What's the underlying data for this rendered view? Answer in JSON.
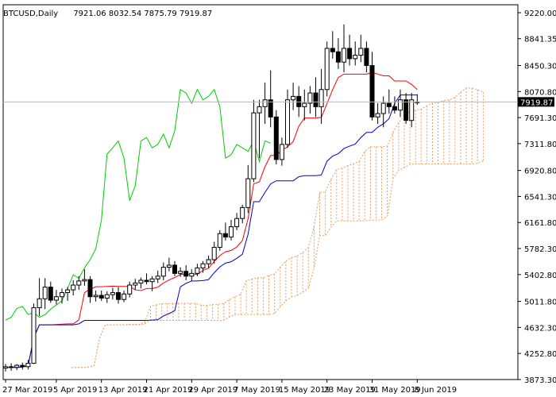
{
  "header": {
    "symbol": "BTCUSD,Daily",
    "ohlc": "7921.06 8032.54 7875.79 7919.87"
  },
  "current_price_label": "7919.87",
  "chart_data": {
    "type": "candlestick",
    "ylim": [
      3873.0,
      9220.0
    ],
    "yticks": [
      "9220.00",
      "8841.35",
      "8450.30",
      "8070.80",
      "7691.30",
      "7311.80",
      "6920.80",
      "6541.30",
      "6161.80",
      "5782.30",
      "5402.80",
      "5011.80",
      "4632.30",
      "4252.80",
      "3873.30"
    ],
    "xticks": [
      "27 Mar 2019",
      "5 Apr 2019",
      "13 Apr 2019",
      "21 Apr 2019",
      "29 Apr 2019",
      "7 May 2019",
      "15 May 2019",
      "23 May 2019",
      "31 May 2019",
      "8 Jun 2019"
    ],
    "xtick_index": [
      0,
      9,
      17,
      25,
      33,
      41,
      49,
      57,
      65,
      73
    ],
    "candles": [
      [
        4040,
        4100,
        3990,
        4060
      ],
      [
        4060,
        4110,
        4000,
        4050
      ],
      [
        4050,
        4100,
        4010,
        4080
      ],
      [
        4080,
        4120,
        4020,
        4060
      ],
      [
        4060,
        4160,
        4020,
        4110
      ],
      [
        4110,
        4980,
        4100,
        4920
      ],
      [
        4920,
        5350,
        4800,
        5050
      ],
      [
        5050,
        5350,
        4900,
        5220
      ],
      [
        5220,
        5300,
        4990,
        5030
      ],
      [
        5030,
        5180,
        4970,
        5080
      ],
      [
        5080,
        5200,
        4980,
        5140
      ],
      [
        5140,
        5220,
        5020,
        5180
      ],
      [
        5180,
        5320,
        5100,
        5250
      ],
      [
        5250,
        5380,
        5180,
        5310
      ],
      [
        5310,
        5480,
        5240,
        5330
      ],
      [
        5330,
        5380,
        4990,
        5080
      ],
      [
        5080,
        5170,
        5010,
        5100
      ],
      [
        5100,
        5170,
        5020,
        5060
      ],
      [
        5060,
        5160,
        4990,
        5110
      ],
      [
        5110,
        5210,
        5040,
        5140
      ],
      [
        5140,
        5220,
        4980,
        5040
      ],
      [
        5040,
        5170,
        5000,
        5120
      ],
      [
        5120,
        5300,
        5070,
        5250
      ],
      [
        5250,
        5340,
        5180,
        5280
      ],
      [
        5280,
        5360,
        5200,
        5320
      ],
      [
        5320,
        5420,
        5260,
        5300
      ],
      [
        5300,
        5380,
        5160,
        5340
      ],
      [
        5340,
        5460,
        5280,
        5380
      ],
      [
        5380,
        5580,
        5320,
        5510
      ],
      [
        5510,
        5650,
        5450,
        5540
      ],
      [
        5540,
        5600,
        5380,
        5420
      ],
      [
        5420,
        5510,
        5370,
        5450
      ],
      [
        5450,
        5540,
        5320,
        5380
      ],
      [
        5380,
        5480,
        5310,
        5420
      ],
      [
        5420,
        5560,
        5380,
        5500
      ],
      [
        5500,
        5600,
        5430,
        5560
      ],
      [
        5560,
        5680,
        5500,
        5620
      ],
      [
        5620,
        5880,
        5560,
        5800
      ],
      [
        5800,
        6050,
        5750,
        6000
      ],
      [
        6000,
        6160,
        5900,
        5950
      ],
      [
        5950,
        6200,
        5900,
        6100
      ],
      [
        6100,
        6300,
        6050,
        6220
      ],
      [
        6220,
        6420,
        6150,
        6380
      ],
      [
        6380,
        7000,
        6300,
        6800
      ],
      [
        6800,
        7950,
        6750,
        7760
      ],
      [
        7760,
        7950,
        7100,
        7850
      ],
      [
        7850,
        8200,
        7600,
        7950
      ],
      [
        7950,
        8380,
        7550,
        7700
      ],
      [
        7700,
        7800,
        7010,
        7080
      ],
      [
        7080,
        7400,
        6990,
        7300
      ],
      [
        7300,
        8100,
        7250,
        7950
      ],
      [
        7950,
        8200,
        7800,
        8000
      ],
      [
        8000,
        8150,
        7700,
        7850
      ],
      [
        7850,
        8100,
        7650,
        7900
      ],
      [
        7900,
        8150,
        7750,
        8050
      ],
      [
        8050,
        8280,
        7700,
        7850
      ],
      [
        7850,
        8400,
        7600,
        8100
      ],
      [
        8100,
        8800,
        8000,
        8700
      ],
      [
        8700,
        8950,
        8550,
        8650
      ],
      [
        8650,
        8850,
        8400,
        8500
      ],
      [
        8500,
        9050,
        8350,
        8700
      ],
      [
        8700,
        8900,
        8450,
        8550
      ],
      [
        8550,
        8800,
        8450,
        8600
      ],
      [
        8600,
        8900,
        8500,
        8700
      ],
      [
        8700,
        8800,
        8350,
        8450
      ],
      [
        8450,
        8650,
        7650,
        7700
      ],
      [
        7700,
        7900,
        7600,
        7750
      ],
      [
        7750,
        8000,
        7550,
        7900
      ],
      [
        7900,
        8100,
        7750,
        7850
      ],
      [
        7850,
        8000,
        7750,
        7800
      ],
      [
        7800,
        8100,
        7700,
        7950
      ],
      [
        7950,
        8050,
        7600,
        7650
      ],
      [
        7650,
        8050,
        7550,
        7950
      ],
      [
        7920,
        8032,
        7876,
        7920
      ]
    ],
    "ichimoku": {
      "tenkan_color": "#ff0000",
      "kijun_color": "#0000c8",
      "chikou_color": "#00cc00",
      "cloud_color": "#e8a060"
    }
  }
}
